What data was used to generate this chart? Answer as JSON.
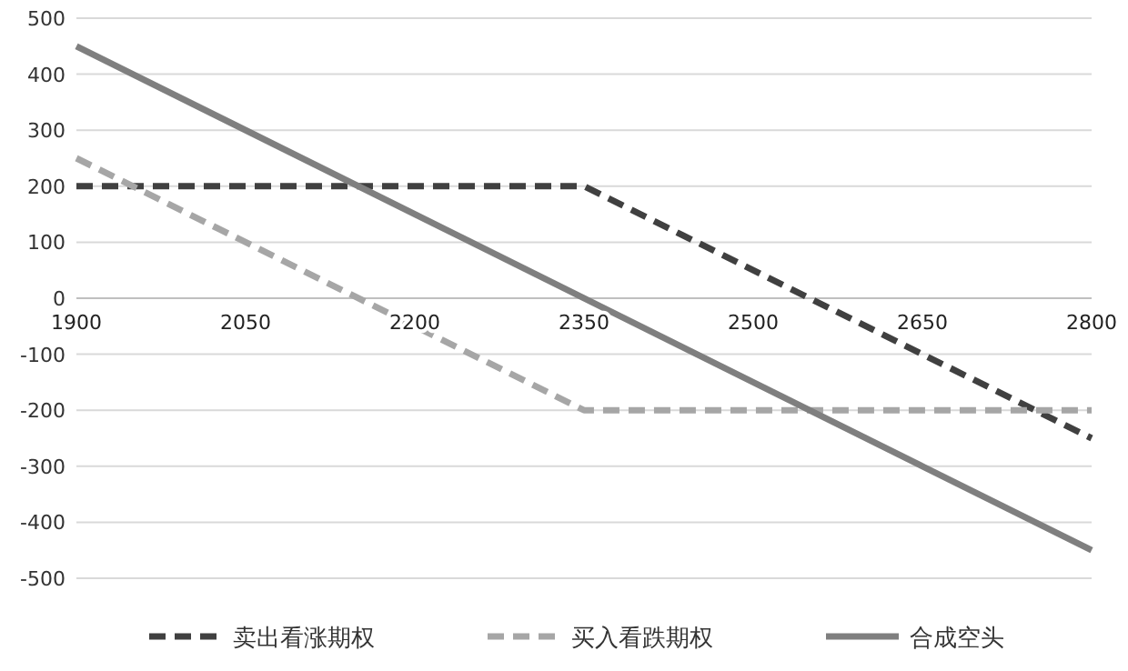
{
  "chart_data": {
    "type": "line",
    "xlim": [
      1900,
      2800
    ],
    "xticks": [
      1900,
      2050,
      2200,
      2350,
      2500,
      2650,
      2800
    ],
    "ylim": [
      -500,
      500
    ],
    "yticks": [
      -500,
      -400,
      -300,
      -200,
      -100,
      0,
      100,
      200,
      300,
      400,
      500
    ],
    "grid": "y",
    "legend": "bottom",
    "series": [
      {
        "name": "卖出看涨期权",
        "color": "#404040",
        "line_style": "dashed",
        "x": [
          1900,
          2350,
          2800
        ],
        "values": [
          200,
          200,
          -250
        ]
      },
      {
        "name": "买入看跌期权",
        "color": "#a6a6a6",
        "line_style": "dashed",
        "x": [
          1900,
          2350,
          2800
        ],
        "values": [
          250,
          -200,
          -200
        ]
      },
      {
        "name": "合成空头",
        "color": "#7f7f7f",
        "line_style": "solid",
        "x": [
          1900,
          2800
        ],
        "values": [
          450,
          -450
        ]
      }
    ]
  }
}
